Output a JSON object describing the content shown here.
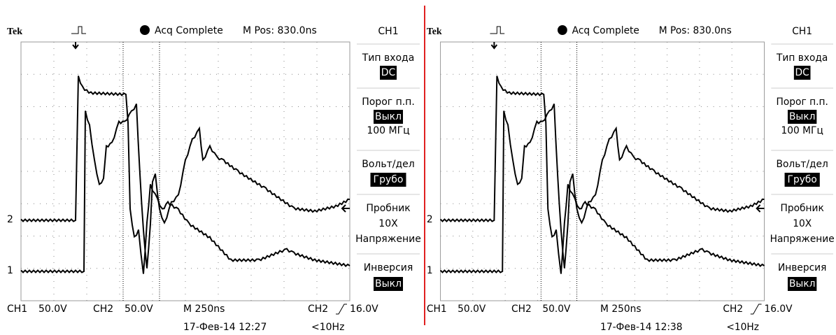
{
  "panels": [
    {
      "brand": "Tek",
      "acq": "Acq Complete",
      "mpos": "M Pos: 830.0ns",
      "ch2_marker": "2",
      "ch1_marker": "1",
      "menu": {
        "title": "CH1",
        "items": [
          {
            "label": "Тип входа",
            "value": "DC"
          },
          {
            "label": "Порог п.п.",
            "value": "Выкл",
            "extra": "100 МГц"
          },
          {
            "label": "Вольт/дел",
            "value": "Грубо"
          },
          {
            "label": "Пробник",
            "extra": "10X",
            "extra2": "Напряжение"
          },
          {
            "label": "Инверсия",
            "value": "Выкл"
          }
        ]
      },
      "footer": {
        "ch1": "CH1",
        "ch1_scale": "50.0V",
        "ch2": "CH2",
        "ch2_scale": "50.0V",
        "timebase": "M 250ns",
        "trig_ch": "CH2",
        "trig_level": "16.0V",
        "date": "17-Фев-14 12:27",
        "freq": "<10Hz"
      }
    },
    {
      "brand": "Tek",
      "acq": "Acq Complete",
      "mpos": "M Pos: 830.0ns",
      "ch2_marker": "2",
      "ch1_marker": "1",
      "menu": {
        "title": "CH1",
        "items": [
          {
            "label": "Тип входа",
            "value": "DC"
          },
          {
            "label": "Порог п.п.",
            "value": "Выкл",
            "extra": "100 МГц"
          },
          {
            "label": "Вольт/дел",
            "value": "Грубо"
          },
          {
            "label": "Пробник",
            "extra": "10X",
            "extra2": "Напряжение"
          },
          {
            "label": "Инверсия",
            "value": "Выкл"
          }
        ]
      },
      "footer": {
        "ch1": "CH1",
        "ch1_scale": "50.0V",
        "ch2": "CH2",
        "ch2_scale": "50.0V",
        "timebase": "M 250ns",
        "trig_ch": "CH2",
        "trig_level": "16.0V",
        "date": "17-Фев-14 12:38",
        "freq": "<10Hz"
      }
    }
  ]
}
